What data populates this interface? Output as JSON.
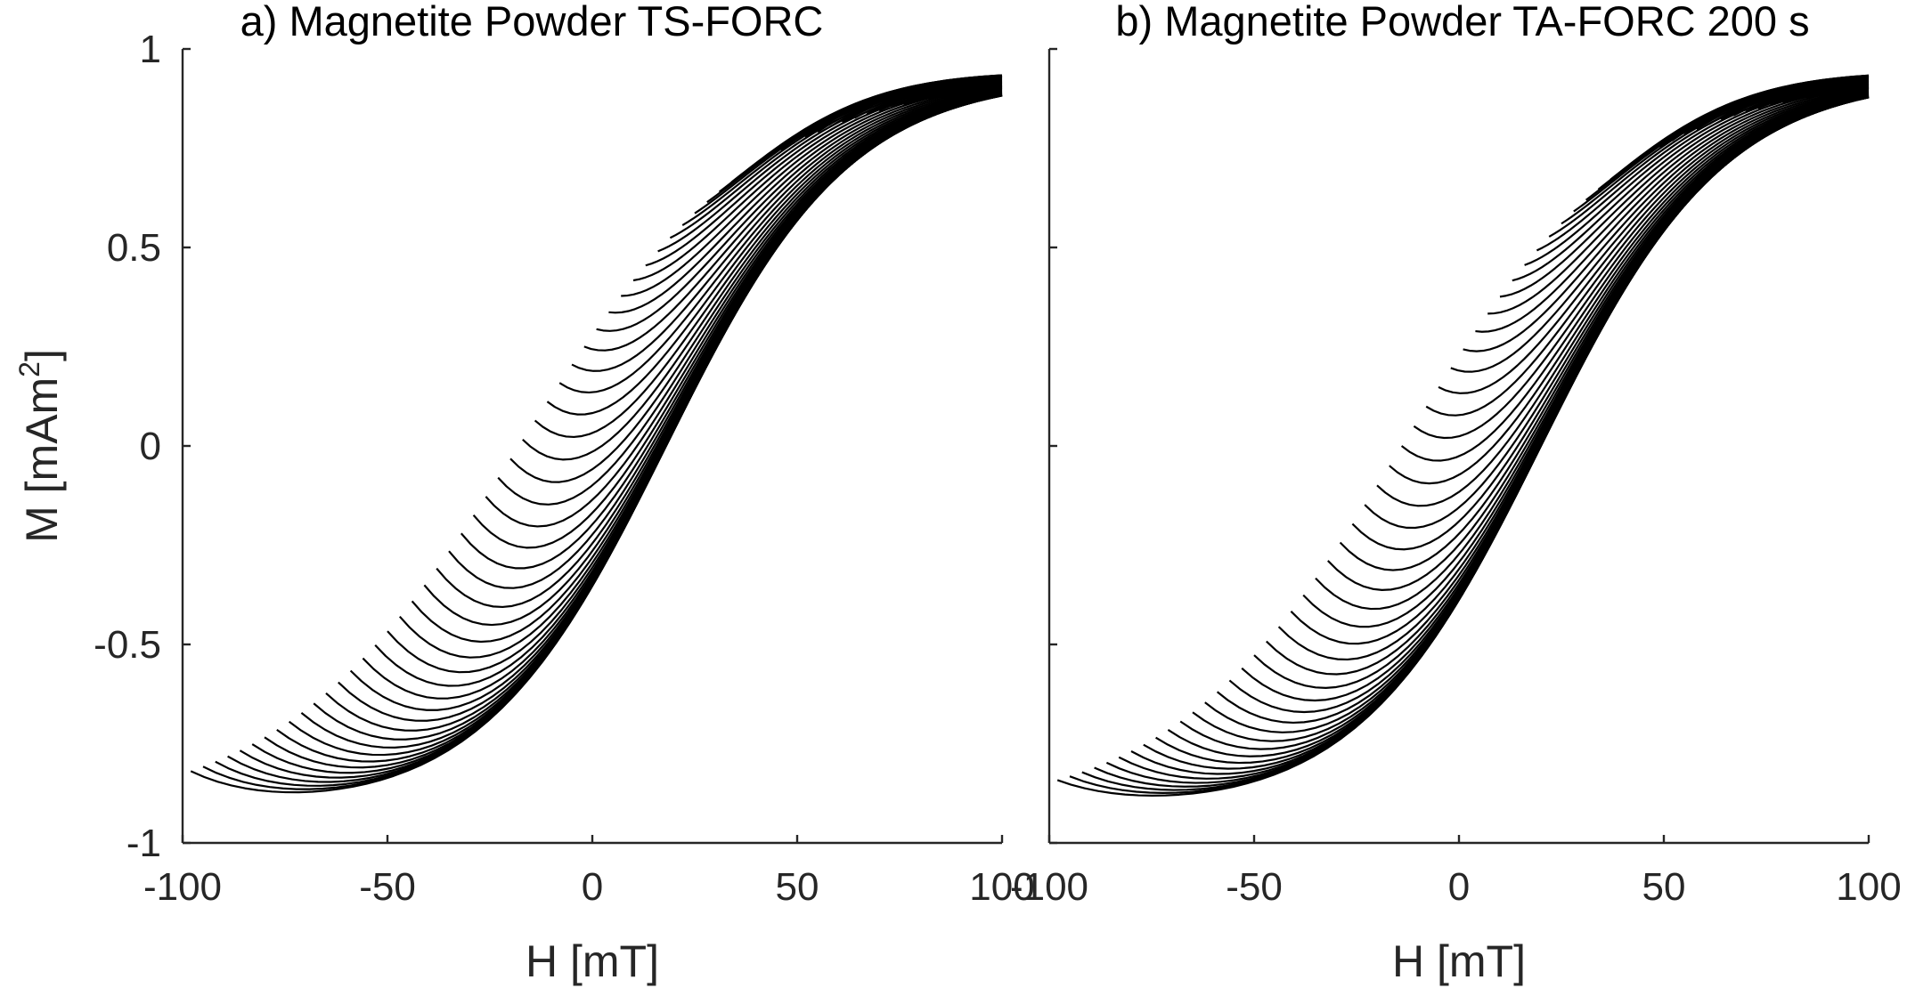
{
  "chart_data": [
    {
      "type": "line",
      "title": "a) Magnetite Powder TS-FORC",
      "xlabel": "H [mT]",
      "ylabel": "M [mAm",
      "ylabel_sup": "2",
      "ylabel_suffix": "]",
      "xlim": [
        -100,
        100
      ],
      "ylim": [
        -1,
        1
      ],
      "xticks": [
        -100,
        -50,
        0,
        50,
        100
      ],
      "xtick_labels": [
        "-100",
        "-50",
        "0",
        "50",
        "100"
      ],
      "yticks": [
        1,
        0.5,
        0,
        -0.5,
        -1
      ],
      "ytick_labels": [
        "1",
        "0.5",
        "0",
        "-0.5",
        "-1"
      ],
      "show_yticklabels": true,
      "grid": false,
      "line_color": "#000000",
      "description": "Family of first-order reversal curves; each curve starts at reversal field Hr and ascends to H = 100 mT",
      "curve_model": {
        "Ms": 0.93,
        "Hc": 18,
        "H0": 45,
        "branch_Hc": -18,
        "branch_H0": 58
      },
      "reversal_fields": [
        -98,
        -95,
        -92,
        -89,
        -86,
        -83,
        -80,
        -77,
        -74,
        -71,
        -68,
        -65,
        -62,
        -59,
        -56,
        -53,
        -50,
        -47,
        -44,
        -41,
        -38,
        -35,
        -32,
        -29,
        -26,
        -23,
        -20,
        -17,
        -14,
        -11,
        -8,
        -5,
        -2,
        1,
        4,
        7,
        10,
        13,
        16,
        19,
        22,
        25,
        28,
        31,
        34,
        37,
        40,
        43,
        46,
        49,
        52,
        55,
        58,
        61,
        64,
        67,
        70,
        73,
        76,
        79,
        82,
        85,
        88,
        91,
        94,
        97
      ]
    },
    {
      "type": "line",
      "title": "b) Magnetite Powder TA-FORC 200 s",
      "xlabel": "H [mT]",
      "ylabel": "",
      "xlim": [
        -100,
        100
      ],
      "ylim": [
        -1,
        1
      ],
      "xticks": [
        -100,
        -50,
        0,
        50,
        100
      ],
      "xtick_labels": [
        "-100",
        "-50",
        "0",
        "50",
        "100"
      ],
      "yticks": [
        1,
        0.5,
        0,
        -0.5,
        -1
      ],
      "ytick_labels": [],
      "show_yticklabels": false,
      "grid": false,
      "line_color": "#000000",
      "description": "Family of first-order reversal curves after 200 s thermal activation; each curve starts at reversal field Hr and ascends to H = 100 mT",
      "curve_model": {
        "Ms": 0.93,
        "Hc": 20,
        "H0": 45,
        "branch_Hc": -14,
        "branch_H0": 56
      },
      "reversal_fields": [
        -98,
        -95,
        -92,
        -89,
        -86,
        -83,
        -80,
        -77,
        -74,
        -71,
        -68,
        -65,
        -62,
        -59,
        -56,
        -53,
        -50,
        -47,
        -44,
        -41,
        -38,
        -35,
        -32,
        -29,
        -26,
        -23,
        -20,
        -17,
        -14,
        -11,
        -8,
        -5,
        -2,
        1,
        4,
        7,
        10,
        13,
        16,
        19,
        22,
        25,
        28,
        31,
        34,
        37,
        40,
        43,
        46,
        49,
        52,
        55,
        58,
        61,
        64,
        67,
        70,
        73,
        76,
        79,
        82,
        85,
        88,
        91,
        94,
        97
      ]
    }
  ]
}
